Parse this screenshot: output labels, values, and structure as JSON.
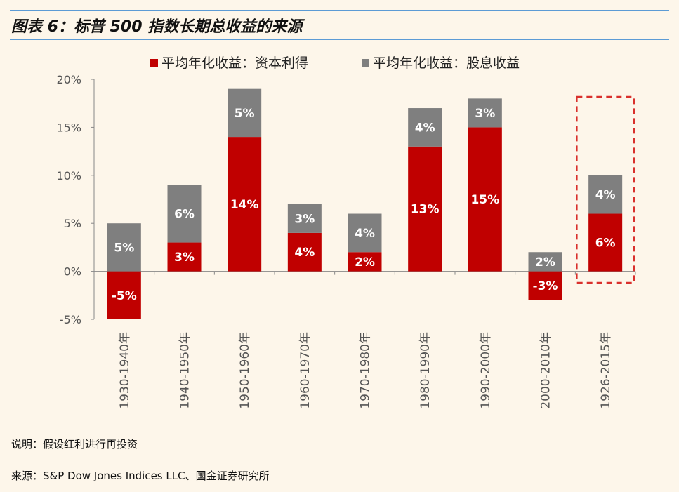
{
  "title": "图表 6：标普 500 指数长期总收益的来源",
  "note": "说明：假设红利进行再投资",
  "source": "来源：S&P Dow Jones Indices LLC、国金证券研究所",
  "colors": {
    "capital": "#c00000",
    "dividend": "#7f7f7f",
    "highlight": "#d9302c",
    "accent_rule": "#5c9bd5"
  },
  "chart_data": {
    "type": "bar",
    "stacked": true,
    "categories": [
      "1930-1940年",
      "1940-1950年",
      "1950-1960年",
      "1960-1970年",
      "1970-1980年",
      "1980-1990年",
      "1990-2000年",
      "2000-2010年",
      "1926-2015年"
    ],
    "series": [
      {
        "name": "平均年化收益：资本利得",
        "values": [
          -5,
          3,
          14,
          4,
          2,
          13,
          15,
          -3,
          6
        ],
        "labels": [
          "-5%",
          "3%",
          "14%",
          "4%",
          "2%",
          "13%",
          "15%",
          "-3%",
          "6%"
        ]
      },
      {
        "name": "平均年化收益：股息收益",
        "values": [
          5,
          6,
          5,
          3,
          4,
          4,
          3,
          2,
          4
        ],
        "labels": [
          "5%",
          "6%",
          "5%",
          "3%",
          "4%",
          "4%",
          "3%",
          "2%",
          "4%"
        ]
      }
    ],
    "y_ticks": [
      "20%",
      "15%",
      "10%",
      "5%",
      "0%",
      "-5%"
    ],
    "y_tick_values": [
      20,
      15,
      10,
      5,
      0,
      -5
    ],
    "ylim": [
      -5,
      20
    ],
    "highlighted_category": "1926-2015年",
    "legend_position": "top-center",
    "grid": false
  }
}
